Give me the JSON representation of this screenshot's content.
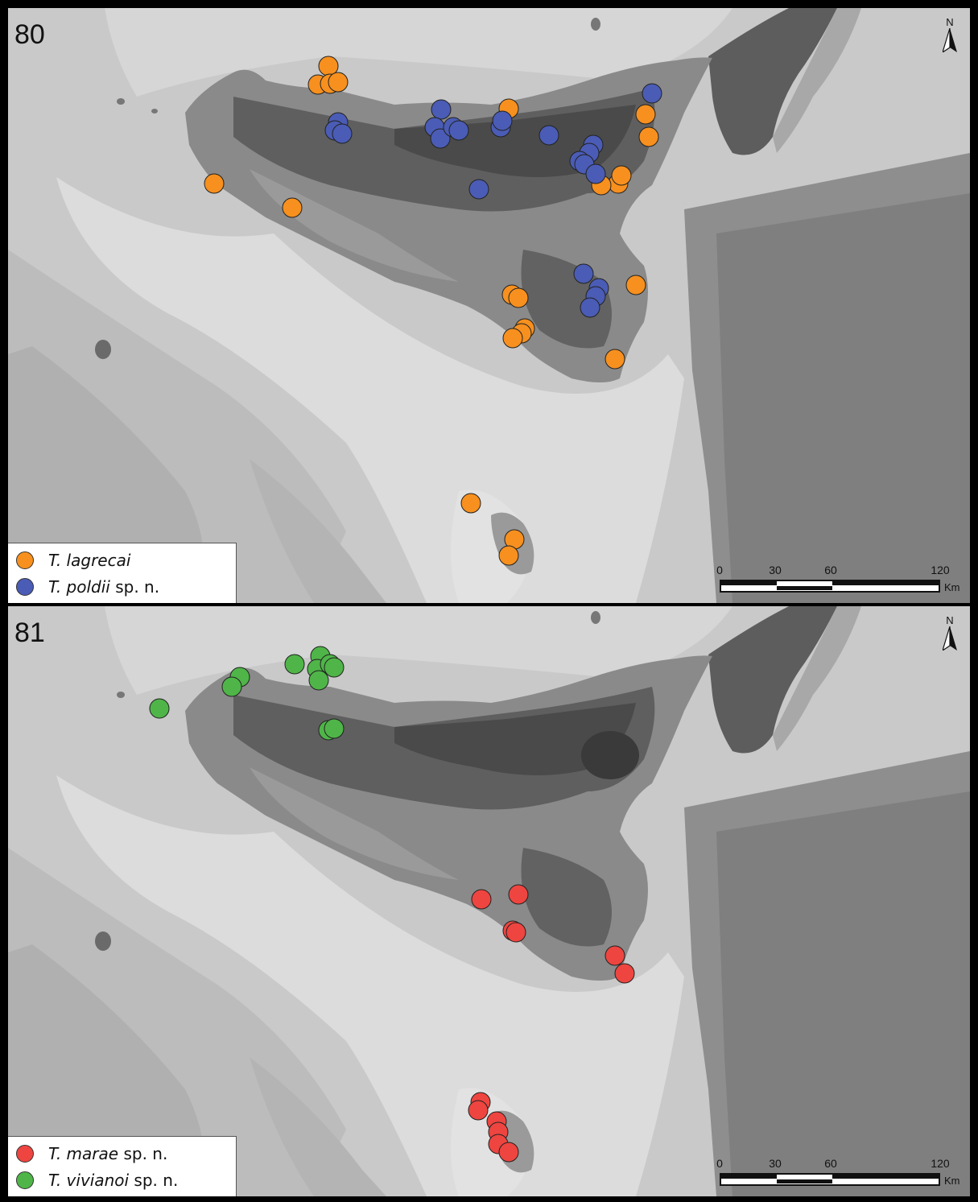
{
  "panels": [
    {
      "number": "80",
      "legend": [
        {
          "species": "T. lagrecai",
          "suffix": "",
          "color": "#f7901e"
        },
        {
          "species": "T. poldii",
          "suffix": " sp. n.",
          "color": "#4a5cb5"
        }
      ],
      "north": "N",
      "scale": {
        "ticks": [
          "0",
          "30",
          "60",
          "120"
        ],
        "unit": "Km"
      }
    },
    {
      "number": "81",
      "legend": [
        {
          "species": "T. marae",
          "suffix": " sp. n.",
          "color": "#ee4540"
        },
        {
          "species": "T. vivianoi",
          "suffix": " sp. n.",
          "color": "#4fb548"
        }
      ],
      "north": "N",
      "scale": {
        "ticks": [
          "0",
          "30",
          "60",
          "120"
        ],
        "unit": "Km"
      }
    }
  ]
}
